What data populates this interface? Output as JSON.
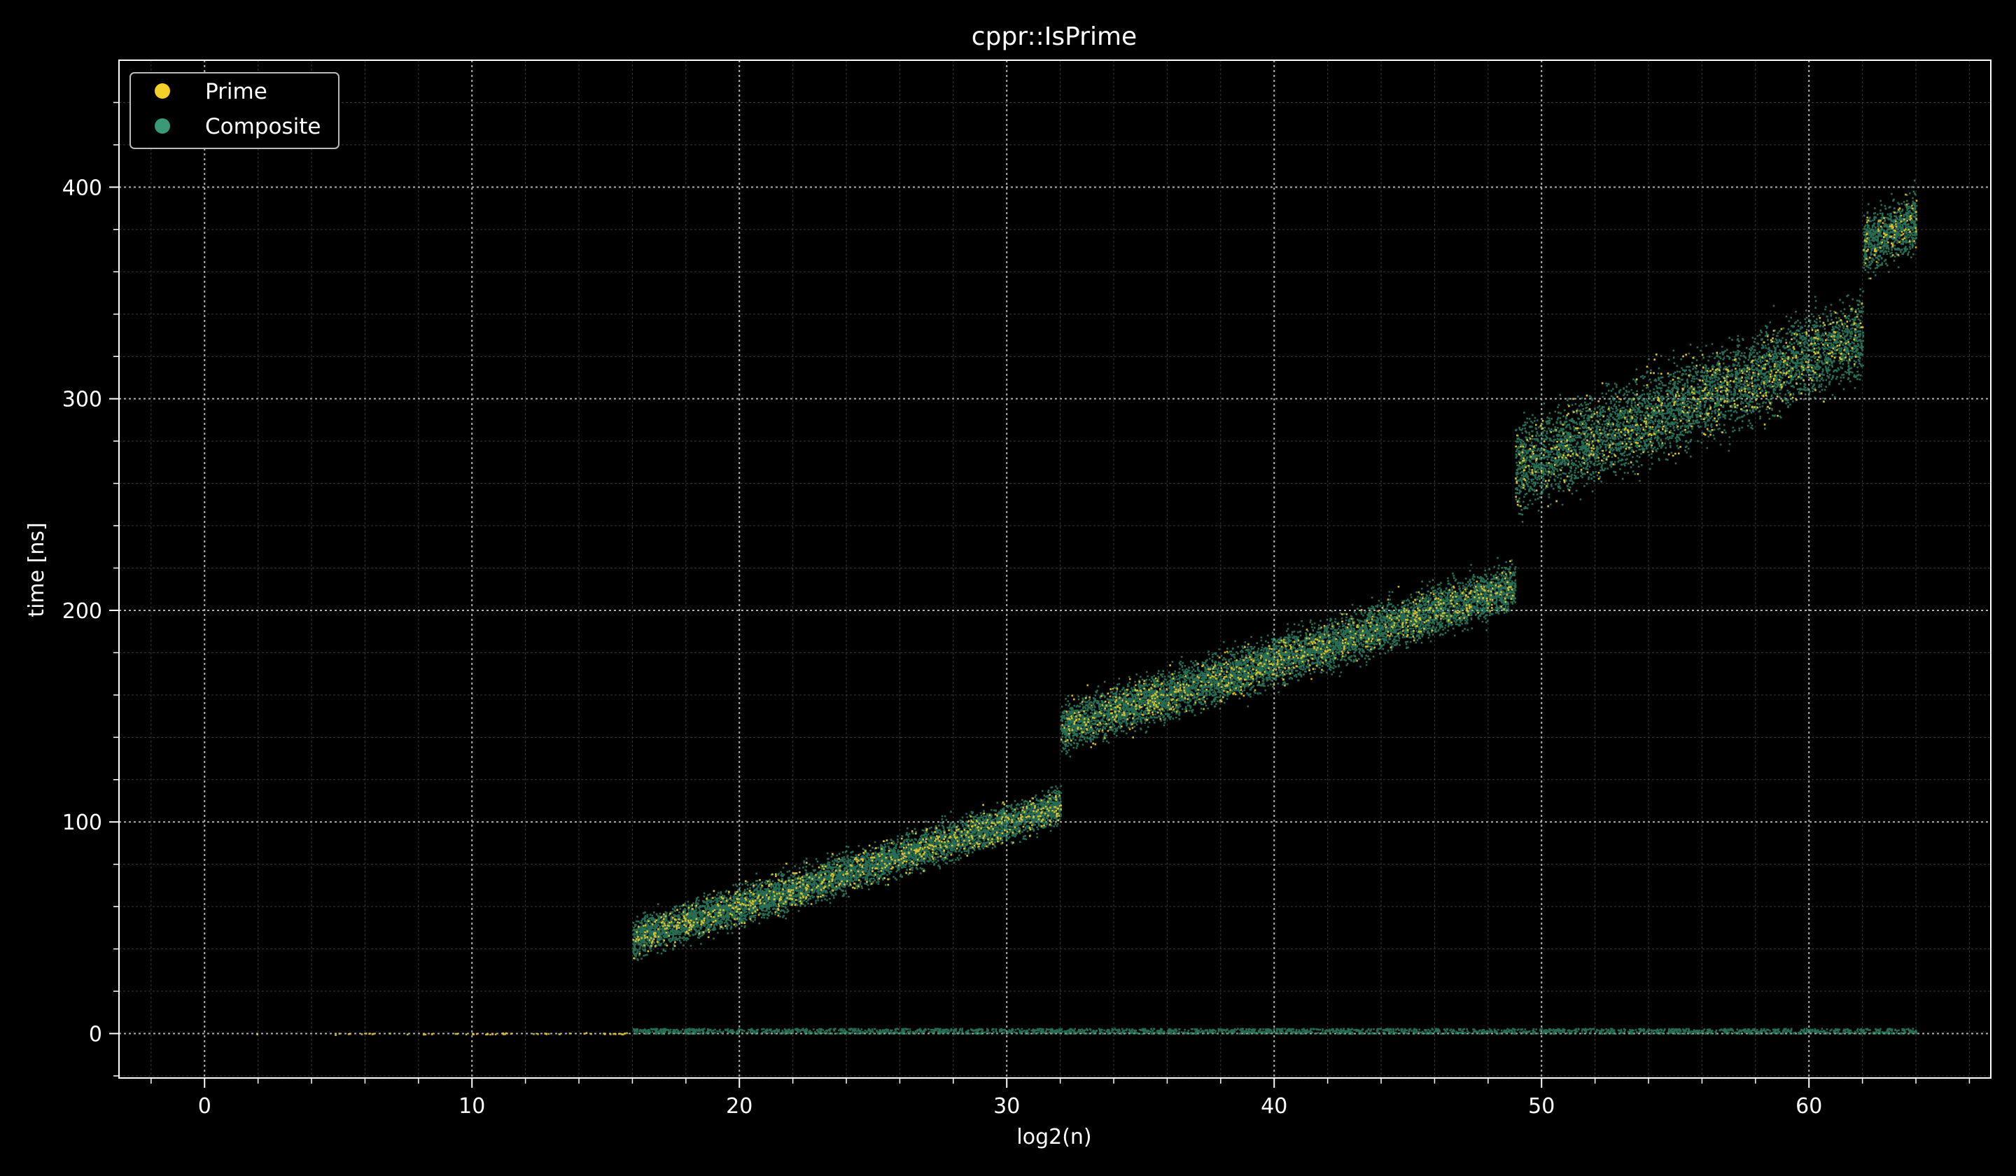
{
  "chart_data": {
    "type": "scatter",
    "title": "cppr::IsPrime",
    "xlabel": "log2(n)",
    "ylabel": "time [ns]",
    "xlim": [
      -3.2,
      66.8
    ],
    "ylim": [
      -21,
      460
    ],
    "xticks": [
      0,
      10,
      20,
      30,
      40,
      50,
      60
    ],
    "yticks": [
      0,
      100,
      200,
      300,
      400
    ],
    "grid": true,
    "legend_position": "top-left",
    "background": "#000000",
    "series": [
      {
        "name": "Prime",
        "color": "#f5cf2a",
        "segments": [
          {
            "x": [
              0,
              16
            ],
            "y_mean": [
              0.2,
              0.2
            ],
            "spread": 0.4,
            "note_density": "sparse"
          },
          {
            "x": [
              16,
              32
            ],
            "y_mean": [
              45,
              108
            ],
            "spread": 8
          },
          {
            "x": [
              32,
              49
            ],
            "y_mean": [
              145,
              212
            ],
            "spread": 10
          },
          {
            "x": [
              49,
              62
            ],
            "y_mean": [
              268,
              330
            ],
            "spread": 18
          },
          {
            "x": [
              62,
              64
            ],
            "y_mean": [
              373,
              385
            ],
            "spread": 12
          }
        ]
      },
      {
        "name": "Composite",
        "color": "#3a9a78",
        "segments": [
          {
            "x": [
              16,
              32
            ],
            "y_mean": [
              45,
              108
            ],
            "spread": 8
          },
          {
            "x": [
              32,
              49
            ],
            "y_mean": [
              145,
              212
            ],
            "spread": 10
          },
          {
            "x": [
              49,
              62
            ],
            "y_mean": [
              268,
              330
            ],
            "spread": 18
          },
          {
            "x": [
              62,
              64
            ],
            "y_mean": [
              373,
              385
            ],
            "spread": 12
          },
          {
            "x": [
              16,
              64
            ],
            "y_mean": [
              1.5,
              1.5
            ],
            "spread": 1.2,
            "note_density": "dense"
          }
        ]
      }
    ]
  }
}
